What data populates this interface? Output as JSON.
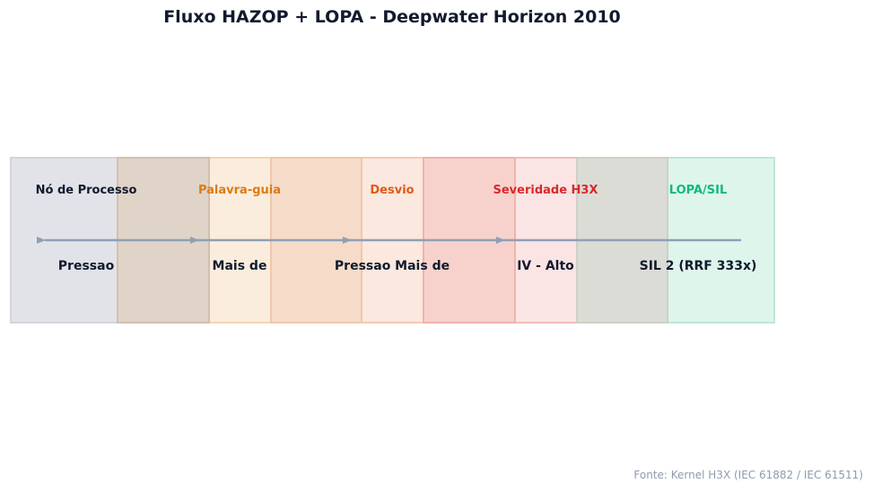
{
  "title": "Fluxo HAZOP + LOPA - Deepwater Horizon 2010",
  "source": "Fonte: Kernel H3X (IEC 61882 / IEC 61511)",
  "stages": [
    {
      "label": "Nó de Processo",
      "value": "Pressao",
      "label_color": "#111a2e"
    },
    {
      "label": "Palavra-guia",
      "value": "Mais de",
      "label_color": "#de7a10"
    },
    {
      "label": "Desvio",
      "value": "Pressao Mais de",
      "label_color": "#e15a16"
    },
    {
      "label": "Severidade H3X",
      "value": "IV - Alto",
      "label_color": "#dc2828"
    },
    {
      "label": "LOPA/SIL",
      "value": "SIL 2 (RRF 333x)",
      "label_color": "#10b981"
    }
  ],
  "colors": {
    "arrow": "#8ea0b6",
    "box_gray": "#e2e3e8",
    "box_orange": "#fbeee0",
    "box_redorange": "#fce9e1",
    "box_red": "#fbe4e4",
    "box_green": "#e0f5ee"
  }
}
